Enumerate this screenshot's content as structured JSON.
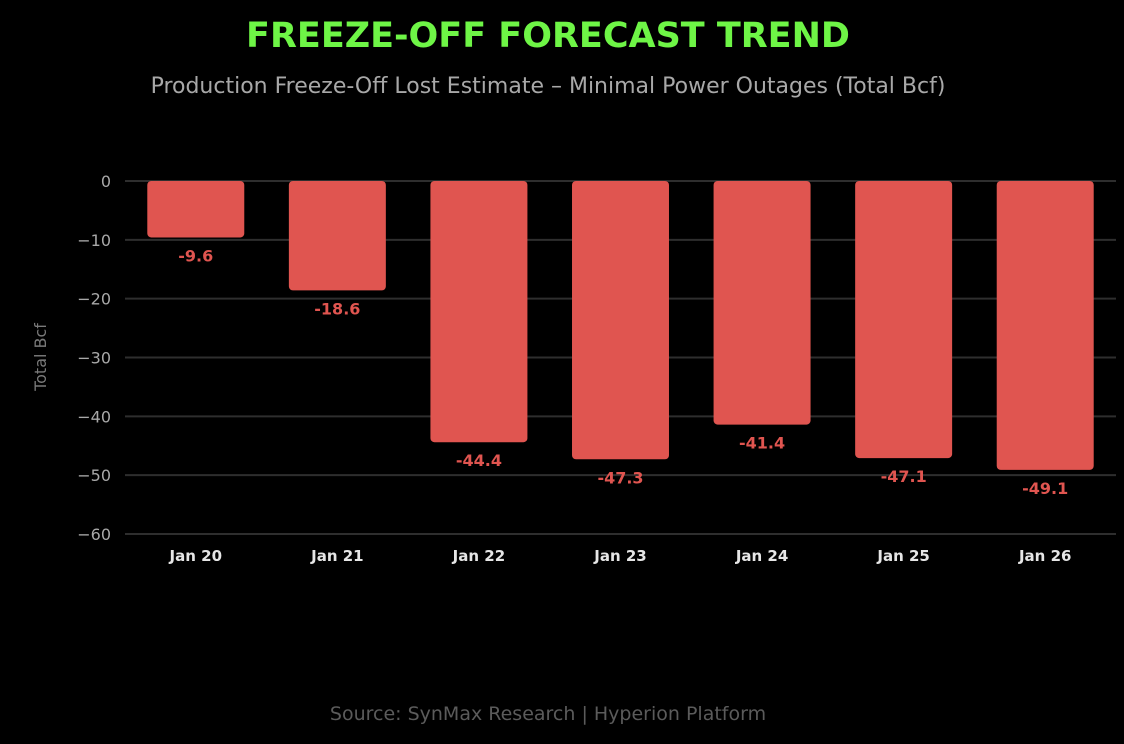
{
  "header": {
    "title": "FREEZE-OFF FORECAST TREND",
    "subtitle": "Production Freeze-Off Lost Estimate – Minimal Power Outages (Total Bcf)"
  },
  "footer": {
    "source": "Source: SynMax Research | Hyperion Platform"
  },
  "colors": {
    "title": "#6ef546",
    "bar": "#e05550",
    "value_label": "#e05550",
    "grid": "#2e2e2e",
    "background": "#000000"
  },
  "chart_data": {
    "type": "bar",
    "title": "FREEZE-OFF FORECAST TREND",
    "subtitle": "Production Freeze-Off Lost Estimate – Minimal Power Outages (Total Bcf)",
    "xlabel": "",
    "ylabel": "Total Bcf",
    "categories": [
      "Jan 20",
      "Jan 21",
      "Jan 22",
      "Jan 23",
      "Jan 24",
      "Jan 25",
      "Jan 26"
    ],
    "values": [
      -9.6,
      -18.6,
      -44.4,
      -47.3,
      -41.4,
      -47.1,
      -49.1
    ],
    "value_labels": [
      "-9.6",
      "-18.6",
      "-44.4",
      "-47.3",
      "-41.4",
      "-47.1",
      "-49.1"
    ],
    "ylim": [
      -60,
      0
    ],
    "yticks": [
      0,
      -10,
      -20,
      -30,
      -40,
      -50,
      -60
    ],
    "ytick_labels": [
      "0",
      "−10",
      "−20",
      "−30",
      "−40",
      "−50",
      "−60"
    ],
    "grid": true,
    "legend": "none",
    "source": "Source: SynMax Research | Hyperion Platform"
  }
}
